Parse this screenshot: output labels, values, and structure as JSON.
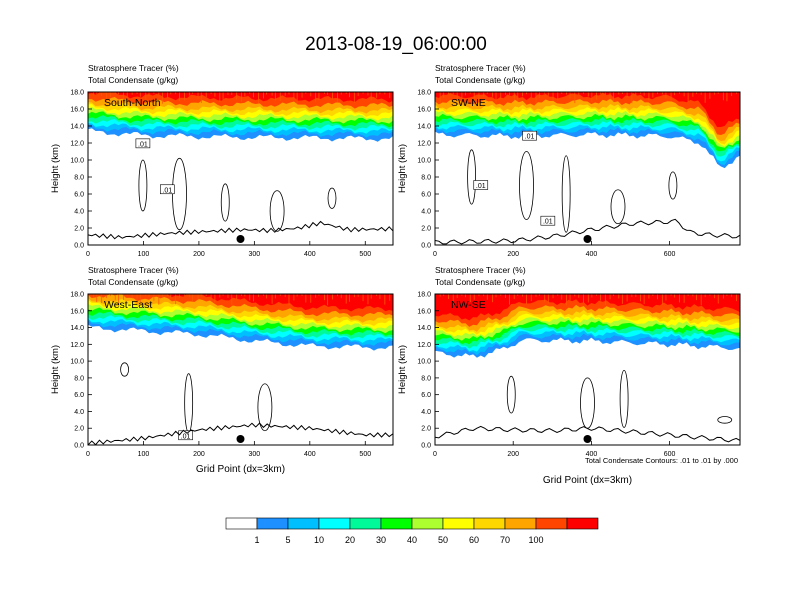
{
  "figure_title": "2013-08-19_06:00:00",
  "panel_titles": {
    "line1": "Stratosphere Tracer   (%)",
    "line2": "Total Condensate   (g/kg)"
  },
  "ylabel": "Height (km)",
  "xlabel": "Grid Point (dx=3km)",
  "footnote": "Total Condensate Contours: .01 to .01 by .000",
  "contour_label": ".01",
  "colorbar": {
    "levels": [
      "1",
      "5",
      "10",
      "20",
      "30",
      "40",
      "50",
      "60",
      "70",
      "100"
    ],
    "colors": [
      "#ffffff",
      "#1e90ff",
      "#00bfff",
      "#00ffff",
      "#00fa9a",
      "#00ff00",
      "#adff2f",
      "#ffff00",
      "#ffd700",
      "#ffa500",
      "#ff4500",
      "#ff0000"
    ]
  },
  "chart_data": [
    {
      "type": "heatmap",
      "name": "South-North",
      "xlim": [
        0,
        550
      ],
      "ylim": [
        0,
        18
      ],
      "xticks": [
        "0",
        "100",
        "200",
        "300",
        "400",
        "500"
      ],
      "yticks": [
        "0.0",
        "2.0",
        "4.0",
        "6.0",
        "8.0",
        "10.0",
        "12.0",
        "14.0",
        "16.0",
        "18.0"
      ],
      "tropopause_km": [
        [
          0,
          13.4
        ],
        [
          100,
          12.9
        ],
        [
          250,
          12.7
        ],
        [
          400,
          12.6
        ],
        [
          550,
          12.5
        ]
      ],
      "terrain_km": [
        [
          0,
          1.2
        ],
        [
          60,
          0.9
        ],
        [
          150,
          1.4
        ],
        [
          280,
          1.8
        ],
        [
          330,
          1.7
        ],
        [
          380,
          2.0
        ],
        [
          420,
          2.6
        ],
        [
          470,
          1.8
        ],
        [
          550,
          1.9
        ]
      ],
      "marker_x": 275
    },
    {
      "type": "heatmap",
      "name": "SW-NE",
      "xlim": [
        0,
        780
      ],
      "ylim": [
        0,
        18
      ],
      "xticks": [
        "0",
        "200",
        "400",
        "600"
      ],
      "yticks": [
        "0.0",
        "2.0",
        "4.0",
        "6.0",
        "8.0",
        "10.0",
        "12.0",
        "14.0",
        "16.0",
        "18.0"
      ],
      "tropopause_km": [
        [
          0,
          13.0
        ],
        [
          200,
          12.8
        ],
        [
          400,
          13.0
        ],
        [
          600,
          12.8
        ],
        [
          680,
          12.0
        ],
        [
          730,
          9.0
        ],
        [
          780,
          10.5
        ]
      ],
      "terrain_km": [
        [
          0,
          0.3
        ],
        [
          200,
          0.5
        ],
        [
          300,
          1.0
        ],
        [
          400,
          1.8
        ],
        [
          500,
          2.5
        ],
        [
          620,
          2.8
        ],
        [
          650,
          1.5
        ],
        [
          700,
          1.2
        ],
        [
          780,
          1.0
        ]
      ],
      "marker_x": 390
    },
    {
      "type": "heatmap",
      "name": "West-East",
      "xlim": [
        0,
        550
      ],
      "ylim": [
        0,
        18
      ],
      "xticks": [
        "0",
        "100",
        "200",
        "300",
        "400",
        "500"
      ],
      "yticks": [
        "0.0",
        "2.0",
        "4.0",
        "6.0",
        "8.0",
        "10.0",
        "12.0",
        "14.0",
        "16.0",
        "18.0"
      ],
      "tropopause_km": [
        [
          0,
          14.0
        ],
        [
          100,
          13.6
        ],
        [
          200,
          13.2
        ],
        [
          300,
          12.4
        ],
        [
          400,
          11.8
        ],
        [
          550,
          11.6
        ]
      ],
      "terrain_km": [
        [
          0,
          0.2
        ],
        [
          100,
          0.8
        ],
        [
          200,
          1.8
        ],
        [
          300,
          2.4
        ],
        [
          400,
          2.0
        ],
        [
          500,
          1.2
        ],
        [
          550,
          1.2
        ]
      ],
      "marker_x": 275
    },
    {
      "type": "heatmap",
      "name": "NW-SE",
      "xlim": [
        0,
        780
      ],
      "ylim": [
        0,
        18
      ],
      "xticks": [
        "0",
        "200",
        "400",
        "600"
      ],
      "yticks": [
        "0.0",
        "2.0",
        "4.0",
        "6.0",
        "8.0",
        "10.0",
        "12.0",
        "14.0",
        "16.0",
        "18.0"
      ],
      "tropopause_km": [
        [
          0,
          11.0
        ],
        [
          100,
          10.5
        ],
        [
          180,
          11.5
        ],
        [
          220,
          12.5
        ],
        [
          400,
          12.4
        ],
        [
          600,
          12.0
        ],
        [
          780,
          11.5
        ]
      ],
      "terrain_km": [
        [
          0,
          1.0
        ],
        [
          100,
          2.0
        ],
        [
          200,
          1.8
        ],
        [
          300,
          1.7
        ],
        [
          400,
          2.0
        ],
        [
          500,
          1.6
        ],
        [
          600,
          1.2
        ],
        [
          780,
          0.5
        ]
      ],
      "marker_x": 390
    }
  ]
}
